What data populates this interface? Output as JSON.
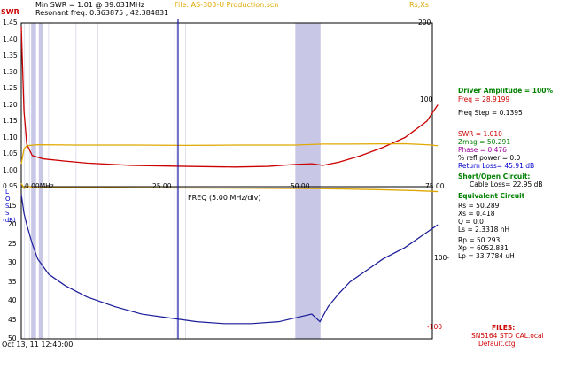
{
  "header": {
    "min_swr": "Min SWR =  1.01 @  39.031MHz",
    "file": "File: AS-303-U Production.scn",
    "resonant": "Resonant freq:  0.363875 , 42.384831",
    "rs_xs": "Rs,Xs"
  },
  "swr_axis": {
    "label": "SWR",
    "ticks": [
      "1.45",
      "1.40",
      "1.35",
      "1.30",
      "1.25",
      "1.20",
      "1.15",
      "1.10",
      "1.05",
      "1.00",
      "0.95"
    ]
  },
  "loss_axis": {
    "label_lines": [
      "L",
      "O",
      "S",
      "S",
      "(dB)"
    ],
    "ticks": [
      "15",
      "20",
      "25",
      "30",
      "35",
      "40",
      "45",
      "50"
    ]
  },
  "right_axis": {
    "top_ticks": [
      "200",
      "100"
    ],
    "bottom_ticks": [
      "100-",
      "-100"
    ]
  },
  "freq_axis": {
    "ticks": [
      "0.00MHz",
      "25.00",
      "50.00",
      "75.00"
    ],
    "label": "FREQ (5.00 MHz/div)"
  },
  "timestamp": "Oct 13, 11  12:40:00",
  "panel": {
    "driver": "Driver Amplitude = 100%",
    "freq": "Freq = 28.9199",
    "freq_step": "Freq Step = 0.1395",
    "swr": "SWR =  1.010",
    "zmag": "Zmag =  50.291",
    "phase": "Phase =   0.476",
    "refl": "% refl power =   0.0",
    "return_loss": "Return Loss= 45.91 dB",
    "short_open": "Short/Open Circuit:",
    "cable_loss": "Cable Loss= 22.95 dB",
    "equiv": "Equivalent Circuit",
    "rs": "Rs =  50.289",
    "xs": "Xs =   0.418",
    "q": "Q =  0.0",
    "ls": "Ls =   2.3318  nH",
    "rp": "Rp =  50.293",
    "xp": "Xp = 6052.831",
    "lp": "Lp =  33.7784  uH",
    "files": "FILES:",
    "file1": "SN5164 STD CAL.ocal",
    "file2": "Default.ctg"
  },
  "chart_data": [
    {
      "type": "line",
      "series": [
        {
          "name": "SWR",
          "color": "#cc0000",
          "x": [
            0,
            0.5,
            1,
            2,
            4,
            8,
            12,
            20,
            30,
            39,
            45,
            50,
            53,
            55,
            58,
            62,
            66,
            70,
            74,
            76
          ],
          "y": [
            1.44,
            1.18,
            1.08,
            1.045,
            1.035,
            1.028,
            1.022,
            1.015,
            1.012,
            1.01,
            1.012,
            1.018,
            1.02,
            1.015,
            1.025,
            1.045,
            1.07,
            1.1,
            1.15,
            1.2
          ]
        },
        {
          "name": "Rs",
          "color": "#e0a800",
          "x": [
            0,
            0.5,
            1,
            3,
            10,
            20,
            30,
            40,
            50,
            55,
            60,
            70,
            74,
            76
          ],
          "y": [
            1.02,
            1.065,
            1.075,
            1.078,
            1.077,
            1.077,
            1.076,
            1.077,
            1.077,
            1.08,
            1.08,
            1.081,
            1.078,
            1.075
          ]
        },
        {
          "name": "Xs",
          "color": "#e0a800",
          "x": [
            0,
            0.5,
            1,
            2,
            5,
            15,
            30,
            45,
            55,
            65,
            72,
            76
          ],
          "y": [
            0.96,
            0.945,
            0.952,
            0.948,
            0.947,
            0.947,
            0.946,
            0.945,
            0.944,
            0.941,
            0.938,
            0.935
          ]
        }
      ],
      "xlim": [
        0,
        75
      ],
      "ylim": [
        0.95,
        1.45
      ],
      "ylabel": "SWR",
      "xlabel": "FREQ (5.00 MHz/div)"
    },
    {
      "type": "line",
      "series": [
        {
          "name": "Return Loss",
          "color": "#1a1a99",
          "x": [
            0,
            0.5,
            1,
            2,
            3,
            5,
            8,
            12,
            17,
            22,
            27,
            32,
            37,
            42,
            47,
            50,
            53,
            54.5,
            56,
            58,
            60,
            63,
            66,
            70,
            74,
            76
          ],
          "y": [
            12,
            17,
            20,
            25,
            29,
            33,
            36,
            39,
            41.5,
            43.5,
            44.5,
            45.5,
            46,
            46,
            45.5,
            44.5,
            43.5,
            45.5,
            41.5,
            38,
            35,
            32,
            29,
            26,
            22,
            20
          ]
        }
      ],
      "xlim": [
        0,
        75
      ],
      "ylim": [
        50,
        10
      ],
      "ylabel": "LOSS (dB)"
    }
  ],
  "colors": {
    "swr": "#cc0000",
    "rsxs": "#e0a800",
    "loss": "#1a1a99",
    "grid_band": "#c8c8e6",
    "green": "#008000"
  }
}
